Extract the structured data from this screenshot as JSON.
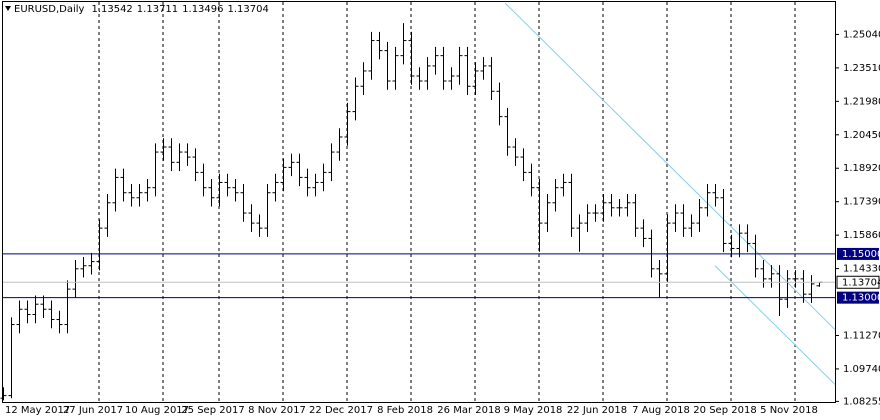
{
  "chart_data": {
    "type": "ohlc",
    "symbol": "EURUSD,Daily",
    "color": "#000000",
    "grid": true,
    "categories": [
      "12 May 2017",
      null,
      null,
      null,
      null,
      null,
      null,
      null,
      null,
      null,
      null,
      null,
      "27 Jun 2017",
      null,
      null,
      null,
      null,
      null,
      null,
      null,
      "10 Aug 2017",
      null,
      null,
      null,
      null,
      null,
      null,
      "25 Sep 2017",
      null,
      null,
      null,
      null,
      null,
      null,
      null,
      "8 Nov 2017",
      null,
      null,
      null,
      null,
      null,
      null,
      null,
      "22 Dec 2017",
      null,
      null,
      null,
      null,
      null,
      null,
      null,
      "8 Feb 2018",
      null,
      null,
      null,
      null,
      null,
      null,
      null,
      "26 Mar 2018",
      null,
      null,
      null,
      null,
      null,
      null,
      null,
      "9 May 2018",
      null,
      null,
      null,
      null,
      null,
      null,
      null,
      "22 Jun 2018",
      null,
      null,
      null,
      null,
      null,
      null,
      null,
      "7 Aug 2018",
      null,
      null,
      null,
      null,
      null,
      null,
      null,
      "20 Sep 2018",
      null,
      null,
      null,
      null,
      null,
      null,
      null,
      "5 Nov 2018",
      null,
      null,
      null
    ],
    "open": [
      1.084,
      1.0852,
      1.1177,
      1.1247,
      1.1223,
      1.127,
      1.1247,
      1.12,
      1.1177,
      1.1339,
      1.1432,
      1.1446,
      1.1465,
      1.1618,
      1.1734,
      1.185,
      1.178,
      1.1757,
      1.178,
      1.1803,
      1.1966,
      1.1989,
      1.1919,
      1.1966,
      1.1943,
      1.1873,
      1.1803,
      1.1757,
      1.1827,
      1.1803,
      1.178,
      1.1687,
      1.1641,
      1.1618,
      1.178,
      1.1827,
      1.1896,
      1.1919,
      1.185,
      1.1803,
      1.1827,
      1.1873,
      1.1966,
      1.2035,
      1.2151,
      1.2267,
      1.2337,
      1.2476,
      1.243,
      1.2291,
      1.2407,
      1.2476,
      1.2314,
      1.2291,
      1.236,
      1.2407,
      1.2291,
      1.2314,
      1.2407,
      1.2267,
      1.2337,
      1.236,
      1.2244,
      1.2128,
      1.1989,
      1.1943,
      1.1873,
      1.1803,
      1.1641,
      1.1734,
      1.1803,
      1.1827,
      1.1618,
      1.1641,
      1.1687,
      1.1687,
      1.1734,
      1.1711,
      1.1711,
      1.1734,
      1.1618,
      1.1571,
      1.1432,
      1.1409,
      1.1641,
      1.1687,
      1.1618,
      1.1641,
      1.1711,
      1.178,
      1.1757,
      1.1548,
      1.1525,
      1.1595,
      1.1548,
      1.1432,
      1.1386,
      1.1409,
      1.1293,
      1.1386,
      1.1386,
      1.1316,
      1.13542
    ],
    "high": [
      1.089,
      1.121,
      1.1287,
      1.1287,
      1.131,
      1.131,
      1.1287,
      1.124,
      1.1379,
      1.1472,
      1.1486,
      1.1505,
      1.1658,
      1.1774,
      1.189,
      1.189,
      1.182,
      1.182,
      1.1843,
      1.2006,
      1.2029,
      1.2029,
      1.2006,
      1.2006,
      1.1983,
      1.1913,
      1.1843,
      1.1867,
      1.1867,
      1.1843,
      1.182,
      1.1727,
      1.1681,
      1.182,
      1.1867,
      1.1936,
      1.1959,
      1.1959,
      1.189,
      1.1867,
      1.1913,
      1.2006,
      1.2075,
      1.2191,
      1.2307,
      1.2377,
      1.2516,
      1.2516,
      1.247,
      1.2447,
      1.2556,
      1.2516,
      1.2354,
      1.24,
      1.2447,
      1.2447,
      1.2354,
      1.2447,
      1.2447,
      1.2377,
      1.24,
      1.24,
      1.2284,
      1.2168,
      1.2029,
      1.1983,
      1.1913,
      1.1843,
      1.1774,
      1.1843,
      1.1867,
      1.1867,
      1.1681,
      1.1727,
      1.1727,
      1.1774,
      1.1774,
      1.1751,
      1.1774,
      1.1774,
      1.1658,
      1.1611,
      1.1472,
      1.1681,
      1.1727,
      1.1727,
      1.1681,
      1.1751,
      1.182,
      1.182,
      1.1797,
      1.1588,
      1.1635,
      1.1635,
      1.1588,
      1.1472,
      1.1449,
      1.1449,
      1.1426,
      1.1426,
      1.1426,
      1.1403,
      1.13711
    ],
    "low": [
      1.083,
      1.084,
      1.1137,
      1.1183,
      1.1183,
      1.1207,
      1.116,
      1.1137,
      1.1137,
      1.1299,
      1.1392,
      1.1406,
      1.1425,
      1.1578,
      1.1694,
      1.174,
      1.1717,
      1.1717,
      1.174,
      1.1763,
      1.1926,
      1.1879,
      1.1879,
      1.1903,
      1.1833,
      1.1763,
      1.1717,
      1.1717,
      1.1763,
      1.174,
      1.1647,
      1.1601,
      1.1578,
      1.1578,
      1.174,
      1.1787,
      1.1856,
      1.181,
      1.1763,
      1.1763,
      1.1787,
      1.1833,
      1.1926,
      1.1995,
      1.2111,
      1.2227,
      1.2297,
      1.239,
      1.2251,
      1.2251,
      1.2367,
      1.2274,
      1.2251,
      1.2251,
      1.232,
      1.2251,
      1.2251,
      1.2274,
      1.2227,
      1.2227,
      1.2297,
      1.2204,
      1.2088,
      1.1949,
      1.1903,
      1.1833,
      1.1763,
      1.151,
      1.1601,
      1.1694,
      1.1763,
      1.1578,
      1.151,
      1.1601,
      1.1647,
      1.1647,
      1.1671,
      1.1671,
      1.1671,
      1.1578,
      1.1531,
      1.1392,
      1.1302,
      1.1369,
      1.1601,
      1.1578,
      1.1578,
      1.1601,
      1.1671,
      1.1717,
      1.1508,
      1.1485,
      1.1485,
      1.1508,
      1.1392,
      1.1346,
      1.1346,
      1.1216,
      1.1253,
      1.1346,
      1.1276,
      1.1276,
      1.13496
    ],
    "close": [
      1.0852,
      1.1177,
      1.1247,
      1.1223,
      1.127,
      1.1247,
      1.12,
      1.1177,
      1.1339,
      1.1432,
      1.1446,
      1.1465,
      1.1618,
      1.1734,
      1.185,
      1.178,
      1.1757,
      1.178,
      1.1803,
      1.1966,
      1.1989,
      1.1919,
      1.1966,
      1.1943,
      1.1873,
      1.1803,
      1.1757,
      1.1827,
      1.1803,
      1.178,
      1.1687,
      1.1641,
      1.1618,
      1.178,
      1.1827,
      1.1896,
      1.1919,
      1.185,
      1.1803,
      1.1827,
      1.1873,
      1.1966,
      1.2035,
      1.2151,
      1.2267,
      1.2337,
      1.2476,
      1.243,
      1.2291,
      1.2407,
      1.2476,
      1.2314,
      1.2291,
      1.236,
      1.2407,
      1.2291,
      1.2314,
      1.2407,
      1.2267,
      1.2337,
      1.236,
      1.2244,
      1.2128,
      1.1989,
      1.1943,
      1.1873,
      1.1803,
      1.1641,
      1.1734,
      1.1803,
      1.1827,
      1.1618,
      1.1641,
      1.1687,
      1.1687,
      1.1734,
      1.1711,
      1.1711,
      1.1734,
      1.1618,
      1.1571,
      1.1432,
      1.1409,
      1.1641,
      1.1687,
      1.1618,
      1.1641,
      1.1711,
      1.178,
      1.1757,
      1.1548,
      1.1525,
      1.1595,
      1.1548,
      1.1432,
      1.1386,
      1.1409,
      1.1293,
      1.1386,
      1.1386,
      1.1316,
      1.1363,
      1.13704
    ],
    "ylim": [
      1.08227,
      1.26524
    ],
    "yticks": [
      {
        "value": 1.2504,
        "label": "1.25040"
      },
      {
        "value": 1.2351,
        "label": "1.23510"
      },
      {
        "value": 1.2198,
        "label": "1.21980"
      },
      {
        "value": 1.2045,
        "label": "1.20450"
      },
      {
        "value": 1.1892,
        "label": "1.18920"
      },
      {
        "value": 1.1739,
        "label": "1.17390"
      },
      {
        "value": 1.1586,
        "label": "1.15860"
      },
      {
        "value": 1.1433,
        "label": "1.14330"
      },
      {
        "value": 1.1127,
        "label": "1.11270"
      },
      {
        "value": 1.0974,
        "label": "1.09740"
      },
      {
        "value": 1.08255,
        "label": "1.08255"
      }
    ],
    "levels": [
      {
        "value": 1.15,
        "label": "1.15000",
        "color": "#000080"
      },
      {
        "value": 1.13,
        "label": "1.13000",
        "color": "#000080"
      }
    ],
    "current_color": "#c0c0c0",
    "trendlines": [
      {
        "from": [
          62.75,
          1.2648
        ],
        "to": [
          104,
          1.1154
        ],
        "color": "#87ceeb"
      },
      {
        "from": [
          89,
          1.1446
        ],
        "to": [
          104,
          1.0903
        ],
        "color": "#87ceeb"
      }
    ]
  }
}
